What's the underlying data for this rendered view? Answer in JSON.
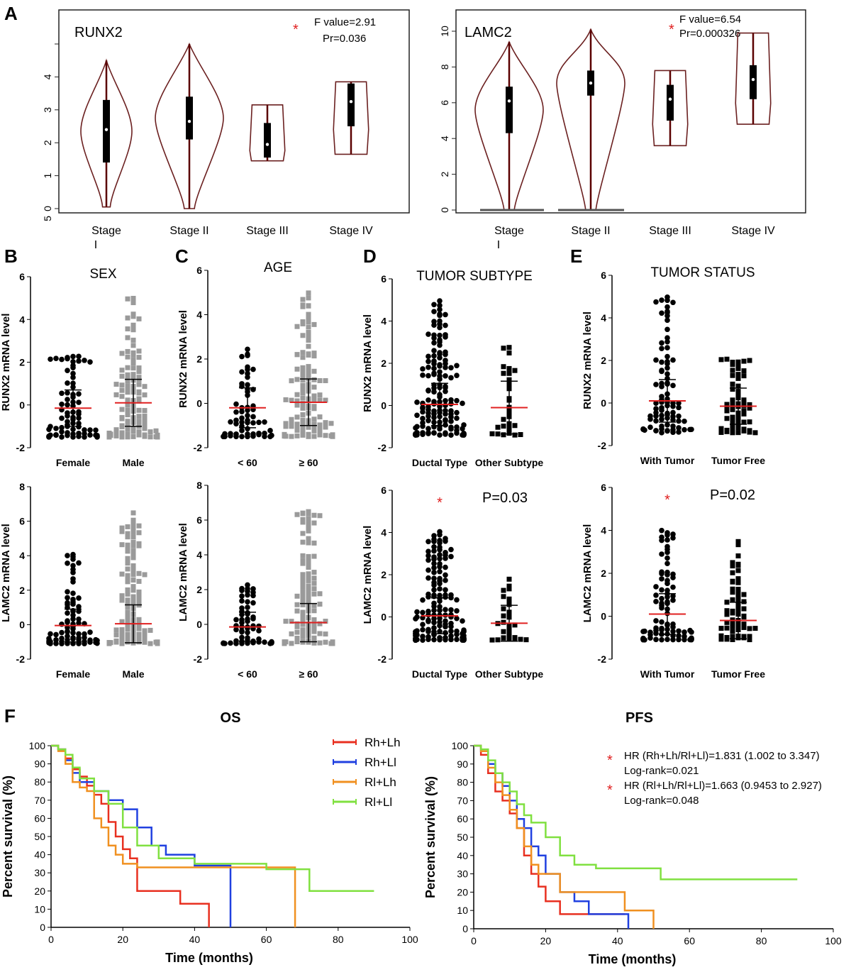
{
  "panel_letters": {
    "a": "A",
    "b": "B",
    "c": "C",
    "d": "D",
    "e": "E",
    "f": "F"
  },
  "colors": {
    "red_marker": "#e02020",
    "black": "#000000",
    "grey": "#9a9a9a",
    "rhlh": "#e83020",
    "rhll": "#2040e0",
    "rllh": "#f09020",
    "rlll": "#80e040"
  },
  "violin_panels": [
    {
      "title": "RUNX2",
      "stat_star": "*",
      "stat_line1": "F value=2.91",
      "stat_line2": "Pr=0.036",
      "yticks": [
        "0",
        "1",
        "2",
        "3",
        "4"
      ],
      "extra_tick": "5",
      "categories": [
        {
          "line1": "Stage",
          "line2": "I"
        },
        {
          "line1": "Stage II",
          "line2": ""
        },
        {
          "line1": "Stage III",
          "line2": ""
        },
        {
          "line1": "Stage IV",
          "line2": ""
        }
      ]
    },
    {
      "title": "LAMC2",
      "stat_star": "*",
      "stat_line1": "F value=6.54",
      "stat_line2": "Pr=0.000326",
      "yticks": [
        "0",
        "2",
        "4",
        "6",
        "8",
        "10"
      ],
      "extra_tick": "",
      "categories": [
        {
          "line1": "Stage",
          "line2": "I"
        },
        {
          "line1": "Stage II",
          "line2": ""
        },
        {
          "line1": "Stage III",
          "line2": ""
        },
        {
          "line1": "Stage IV",
          "line2": ""
        }
      ]
    }
  ],
  "dot_panels": [
    {
      "letter": "B",
      "title": "SEX",
      "ylabel": "RUNX2 mRNA  level",
      "yticks": [
        "-2",
        "0",
        "2",
        "4",
        "6"
      ],
      "cats": [
        "Female",
        "Male"
      ],
      "annotation": "",
      "star": ""
    },
    {
      "letter": "C",
      "title": "AGE",
      "ylabel": "RUNX2 mRNA  level",
      "yticks": [
        "-2",
        "0",
        "2",
        "4",
        "6"
      ],
      "cats": [
        "< 60",
        "≥ 60"
      ],
      "annotation": "",
      "star": ""
    },
    {
      "letter": "D",
      "title": "TUMOR SUBTYPE",
      "ylabel": "RUNX2 mRNA  level",
      "yticks": [
        "-2",
        "0",
        "2",
        "4",
        "6"
      ],
      "cats": [
        "Ductal Type",
        "Other Subtype"
      ],
      "annotation": "",
      "star": ""
    },
    {
      "letter": "E",
      "title": "TUMOR STATUS",
      "ylabel": "RUNX2 mRNA  level",
      "yticks": [
        "-2",
        "0",
        "2",
        "4",
        "6"
      ],
      "cats": [
        "With Tumor",
        "Tumor Free"
      ],
      "annotation": "",
      "star": ""
    },
    {
      "letter": "",
      "title": "",
      "ylabel": "LAMC2 mRNA  level",
      "yticks": [
        "-2",
        "0",
        "2",
        "4",
        "6",
        "8"
      ],
      "cats": [
        "Female",
        "Male"
      ],
      "annotation": "",
      "star": ""
    },
    {
      "letter": "",
      "title": "",
      "ylabel": "LAMC2 mRNA  level",
      "yticks": [
        "-2",
        "0",
        "2",
        "4",
        "6",
        "8"
      ],
      "cats": [
        "< 60",
        "≥ 60"
      ],
      "annotation": "",
      "star": ""
    },
    {
      "letter": "",
      "title": "",
      "ylabel": "LAMC2 mRNA  level",
      "yticks": [
        "-2",
        "0",
        "2",
        "4",
        "6"
      ],
      "cats": [
        "Ductal Type",
        "Other Subtype"
      ],
      "annotation": "P=0.03",
      "star": "*"
    },
    {
      "letter": "",
      "title": "",
      "ylabel": "LAMC2 mRNA  level",
      "yticks": [
        "-2",
        "0",
        "2",
        "4",
        "6"
      ],
      "cats": [
        "With Tumor",
        "Tumor Free"
      ],
      "annotation": "P=0.02",
      "star": "*"
    }
  ],
  "km_panels": [
    {
      "title": "OS",
      "ylabel": "Percent survival  (%)",
      "xlabel": "Time (months)",
      "yticks": [
        "0",
        "10",
        "20",
        "30",
        "40",
        "50",
        "60",
        "70",
        "80",
        "90",
        "100"
      ],
      "xticks": [
        "0",
        "20",
        "40",
        "60",
        "80",
        "100"
      ],
      "legend": [
        "Rh+Lh",
        "Rh+Ll",
        "Rl+Lh",
        "Rl+Ll"
      ]
    },
    {
      "title": "PFS",
      "ylabel": "Percent survival  (%)",
      "xlabel": "Time (months)",
      "yticks": [
        "0",
        "10",
        "20",
        "30",
        "40",
        "50",
        "60",
        "70",
        "80",
        "90",
        "100"
      ],
      "xticks": [
        "0",
        "20",
        "40",
        "60",
        "80",
        "100"
      ],
      "hr_lines": [
        {
          "star": "*",
          "text": "HR (Rh+Lh/Rl+Ll)=1.831 (1.002 to 3.347)",
          "logrank": "Log-rank=0.021"
        },
        {
          "star": "*",
          "text": "HR (Rl+Lh/Rl+Ll)=1.663 (0.9453 to 2.927)",
          "logrank": "Log-rank=0.048"
        }
      ]
    }
  ],
  "chart_data": [
    {
      "type": "violin",
      "title": "RUNX2",
      "ylim": [
        0,
        5
      ],
      "categories": [
        "Stage I",
        "Stage II",
        "Stage III",
        "Stage IV"
      ],
      "stats": [
        {
          "min": 0.05,
          "q1": 1.4,
          "median": 2.4,
          "q3": 3.3,
          "max": 4.5
        },
        {
          "min": 0.0,
          "q1": 2.1,
          "median": 2.65,
          "q3": 3.4,
          "max": 5.0
        },
        {
          "min": 1.45,
          "q1": 1.55,
          "median": 1.95,
          "q3": 2.6,
          "max": 3.15
        },
        {
          "min": 1.65,
          "q1": 2.5,
          "median": 3.25,
          "q3": 3.8,
          "max": 3.85
        }
      ],
      "annotation": "F value=2.91 Pr=0.036"
    },
    {
      "type": "violin",
      "title": "LAMC2",
      "ylim": [
        0,
        10
      ],
      "categories": [
        "Stage I",
        "Stage II",
        "Stage III",
        "Stage IV"
      ],
      "stats": [
        {
          "min": 0.0,
          "q1": 4.3,
          "median": 6.1,
          "q3": 6.9,
          "max": 9.4
        },
        {
          "min": 0.0,
          "q1": 6.4,
          "median": 7.1,
          "q3": 7.8,
          "max": 10.1
        },
        {
          "min": 3.6,
          "q1": 5.0,
          "median": 6.2,
          "q3": 7.0,
          "max": 7.8
        },
        {
          "min": 4.8,
          "q1": 6.2,
          "median": 7.3,
          "q3": 8.1,
          "max": 9.9
        }
      ],
      "annotation": "F value=6.54 Pr=0.000326"
    },
    {
      "type": "scatter",
      "title": "SEX",
      "ylabel": "RUNX2 mRNA level",
      "ylim": [
        -2,
        6
      ],
      "categories": [
        "Female",
        "Male"
      ],
      "groups": [
        {
          "n": 75,
          "lo": -1.5,
          "hi": 2.6,
          "mean": -0.15,
          "sd": 0.85
        },
        {
          "n": 115,
          "lo": -1.5,
          "hi": 5.0,
          "mean": 0.1,
          "sd": 1.1
        }
      ]
    },
    {
      "type": "scatter",
      "title": "AGE",
      "ylabel": "RUNX2 mRNA level",
      "ylim": [
        -2,
        6
      ],
      "categories": [
        "< 60",
        "≥ 60"
      ],
      "groups": [
        {
          "n": 60,
          "lo": -1.5,
          "hi": 2.6,
          "mean": -0.2,
          "sd": 0.9
        },
        {
          "n": 120,
          "lo": -1.5,
          "hi": 5.0,
          "mean": 0.05,
          "sd": 1.05
        }
      ]
    },
    {
      "type": "scatter",
      "title": "TUMOR SUBTYPE",
      "ylabel": "RUNX2 mRNA level",
      "ylim": [
        -2,
        6
      ],
      "categories": [
        "Ductal Type",
        "Other Subtype"
      ],
      "groups": [
        {
          "n": 150,
          "lo": -1.4,
          "hi": 5.0,
          "mean": 0.05,
          "sd": 1.0
        },
        {
          "n": 30,
          "lo": -1.4,
          "hi": 2.8,
          "mean": -0.1,
          "sd": 1.25
        }
      ]
    },
    {
      "type": "scatter",
      "title": "TUMOR STATUS",
      "ylabel": "RUNX2 mRNA level",
      "ylim": [
        -2,
        6
      ],
      "categories": [
        "With Tumor",
        "Tumor Free"
      ],
      "groups": [
        {
          "n": 85,
          "lo": -1.4,
          "hi": 5.0,
          "mean": 0.1,
          "sd": 1.0
        },
        {
          "n": 60,
          "lo": -1.4,
          "hi": 2.2,
          "mean": -0.15,
          "sd": 0.85
        }
      ]
    },
    {
      "type": "scatter",
      "ylabel": "LAMC2 mRNA level",
      "ylim": [
        -2,
        8
      ],
      "categories": [
        "Female",
        "Male"
      ],
      "groups": [
        {
          "n": 75,
          "lo": -1.1,
          "hi": 4.1,
          "mean": -0.05,
          "sd": 0.95
        },
        {
          "n": 115,
          "lo": -1.1,
          "hi": 6.5,
          "mean": 0.05,
          "sd": 1.1
        }
      ]
    },
    {
      "type": "scatter",
      "ylabel": "LAMC2 mRNA level",
      "ylim": [
        -2,
        8
      ],
      "categories": [
        "< 60",
        "≥ 60"
      ],
      "groups": [
        {
          "n": 60,
          "lo": -1.1,
          "hi": 2.4,
          "mean": -0.15,
          "sd": 0.85
        },
        {
          "n": 120,
          "lo": -1.1,
          "hi": 6.5,
          "mean": 0.1,
          "sd": 1.1
        }
      ]
    },
    {
      "type": "scatter",
      "ylabel": "LAMC2 mRNA level",
      "ylim": [
        -2,
        6
      ],
      "categories": [
        "Ductal Type",
        "Other Subtype"
      ],
      "groups": [
        {
          "n": 150,
          "lo": -1.1,
          "hi": 4.1,
          "mean": 0.05,
          "sd": 0.85
        },
        {
          "n": 30,
          "lo": -1.1,
          "hi": 1.9,
          "mean": -0.3,
          "sd": 0.85
        }
      ],
      "annotation": "P=0.03"
    },
    {
      "type": "scatter",
      "ylabel": "LAMC2 mRNA level",
      "ylim": [
        -2,
        6
      ],
      "categories": [
        "With Tumor",
        "Tumor Free"
      ],
      "groups": [
        {
          "n": 85,
          "lo": -1.1,
          "hi": 4.1,
          "mean": 0.1,
          "sd": 0.95
        },
        {
          "n": 60,
          "lo": -1.1,
          "hi": 3.5,
          "mean": -0.2,
          "sd": 0.85
        }
      ],
      "annotation": "P=0.02"
    },
    {
      "type": "line",
      "title": "OS",
      "xlabel": "Time (months)",
      "ylabel": "Percent survival (%)",
      "xlim": [
        0,
        100
      ],
      "ylim": [
        0,
        100
      ],
      "series": [
        {
          "name": "Rh+Lh",
          "x": [
            0,
            2,
            4,
            6,
            8,
            10,
            12,
            14,
            16,
            18,
            20,
            22,
            24,
            30,
            36,
            40,
            44
          ],
          "y": [
            100,
            98,
            93,
            87,
            83,
            78,
            73,
            68,
            58,
            50,
            43,
            38,
            20,
            20,
            13,
            13,
            0
          ]
        },
        {
          "name": "Rh+Ll",
          "x": [
            0,
            2,
            4,
            6,
            8,
            12,
            16,
            20,
            24,
            28,
            32,
            40,
            49,
            50
          ],
          "y": [
            100,
            98,
            92,
            85,
            80,
            75,
            70,
            65,
            55,
            45,
            40,
            34,
            34,
            0
          ]
        },
        {
          "name": "Rl+Lh",
          "x": [
            0,
            2,
            4,
            6,
            8,
            10,
            12,
            14,
            16,
            18,
            20,
            24,
            30,
            40,
            67,
            68
          ],
          "y": [
            100,
            97,
            90,
            80,
            77,
            75,
            60,
            55,
            45,
            40,
            35,
            33,
            33,
            33,
            33,
            0
          ]
        },
        {
          "name": "Rl+Ll",
          "x": [
            0,
            2,
            4,
            6,
            8,
            12,
            16,
            20,
            24,
            30,
            40,
            50,
            60,
            72,
            80,
            90
          ],
          "y": [
            100,
            98,
            95,
            88,
            82,
            75,
            68,
            55,
            45,
            38,
            35,
            35,
            32,
            20,
            20,
            20
          ]
        }
      ]
    },
    {
      "type": "line",
      "title": "PFS",
      "xlabel": "Time (months)",
      "ylabel": "Percent survival (%)",
      "xlim": [
        0,
        100
      ],
      "ylim": [
        0,
        100
      ],
      "series": [
        {
          "name": "Rh+Lh",
          "x": [
            0,
            2,
            4,
            6,
            8,
            10,
            12,
            14,
            16,
            18,
            20,
            24,
            26,
            42
          ],
          "y": [
            100,
            95,
            85,
            75,
            70,
            63,
            55,
            40,
            30,
            23,
            15,
            8,
            8,
            8
          ]
        },
        {
          "name": "Rh+Ll",
          "x": [
            0,
            2,
            4,
            6,
            8,
            10,
            12,
            14,
            16,
            18,
            20,
            24,
            28,
            32,
            38,
            43
          ],
          "y": [
            100,
            97,
            90,
            85,
            78,
            70,
            60,
            55,
            45,
            40,
            30,
            20,
            15,
            8,
            8,
            0
          ]
        },
        {
          "name": "Rl+Lh",
          "x": [
            0,
            2,
            4,
            6,
            8,
            10,
            12,
            14,
            16,
            18,
            20,
            24,
            30,
            42,
            50
          ],
          "y": [
            100,
            97,
            88,
            80,
            73,
            65,
            55,
            45,
            35,
            30,
            30,
            20,
            20,
            10,
            0
          ]
        },
        {
          "name": "Rl+Ll",
          "x": [
            0,
            2,
            4,
            6,
            8,
            10,
            12,
            14,
            16,
            20,
            24,
            28,
            34,
            50,
            52,
            90
          ],
          "y": [
            100,
            98,
            92,
            85,
            80,
            75,
            68,
            62,
            58,
            50,
            40,
            35,
            33,
            33,
            27,
            27
          ]
        }
      ]
    }
  ]
}
